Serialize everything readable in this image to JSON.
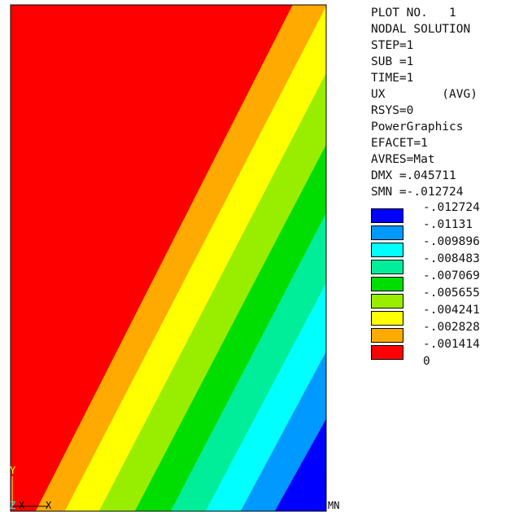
{
  "info_lines": [
    "PLOT NO.   1",
    "NODAL SOLUTION",
    "STEP=1",
    "SUB =1",
    "TIME=1",
    "UX        (AVG)",
    "RSYS=0",
    "PowerGraphics",
    "EFACET=1",
    "AVRES=Mat",
    "DMX =.045711",
    "SMN =-.012724"
  ],
  "legend": {
    "labels": [
      "-.012724",
      "-.01131",
      "-.009896",
      "-.008483",
      "-.007069",
      "-.005655",
      "-.004241",
      "-.002828",
      "-.001414",
      "0"
    ],
    "colors": [
      "#0000ff",
      "#0099ff",
      "#00ffff",
      "#00ee99",
      "#00dd00",
      "#99ee00",
      "#ffff00",
      "#ffaa00",
      "#ff0000"
    ]
  },
  "triad": {
    "y_label": "Y",
    "z_label": "Z",
    "x_label": "X",
    "x_label2": "X",
    "y_color": "#ffff00",
    "z_color": "#00ffff",
    "x_color": "#000000"
  },
  "markers": {
    "mn_label": "MN"
  }
}
